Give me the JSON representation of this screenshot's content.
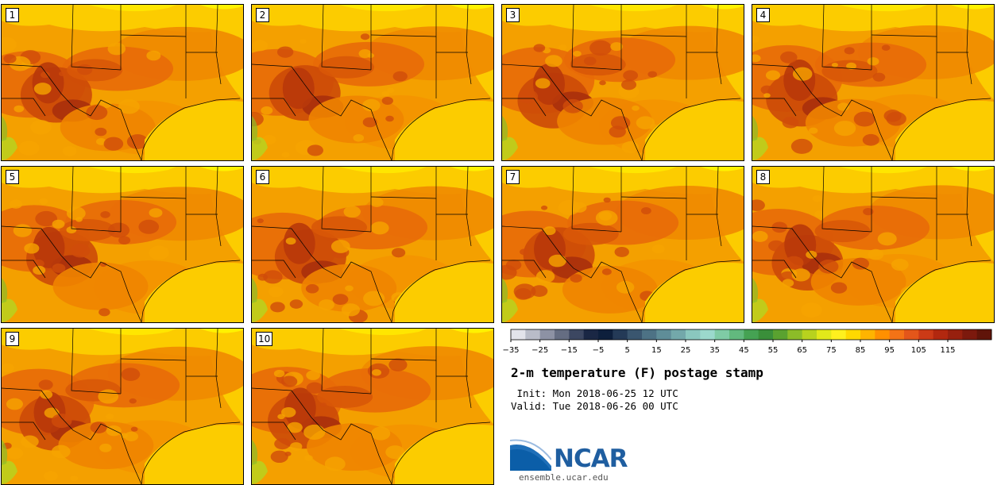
{
  "panels": [
    {
      "label": "1"
    },
    {
      "label": "2"
    },
    {
      "label": "3"
    },
    {
      "label": "4"
    },
    {
      "label": "5"
    },
    {
      "label": "6"
    },
    {
      "label": "7"
    },
    {
      "label": "8"
    },
    {
      "label": "9"
    },
    {
      "label": "10"
    }
  ],
  "colorbar": {
    "colors": [
      "#e2e3ea",
      "#b9bcc8",
      "#8d92a4",
      "#656d82",
      "#3c4761",
      "#1a2744",
      "#0d1f3c",
      "#243a57",
      "#3a566f",
      "#4d7285",
      "#5f8d98",
      "#73a8aa",
      "#8ac7be",
      "#9bd9cc",
      "#7fcba5",
      "#62b97e",
      "#45a253",
      "#3a8f3a",
      "#5aa230",
      "#8cbc28",
      "#b8d21e",
      "#e2e81a",
      "#fff01e",
      "#ffd800",
      "#ffb400",
      "#ff9000",
      "#f47316",
      "#e3561a",
      "#cc3a16",
      "#b2280f",
      "#97200e",
      "#7c190d",
      "#601409"
    ],
    "tick_labels": [
      "−35",
      "−25",
      "−15",
      "−5",
      "5",
      "15",
      "25",
      "35",
      "45",
      "55",
      "65",
      "75",
      "85",
      "95",
      "105",
      "115"
    ]
  },
  "title": "2-m temperature (F) postage stamp",
  "init_line": " Init: Mon 2018-06-25 12 UTC",
  "valid_line": "Valid: Tue 2018-06-26 00 UTC",
  "logo": {
    "text": "NCAR",
    "url": "ensemble.ucar.edu"
  }
}
